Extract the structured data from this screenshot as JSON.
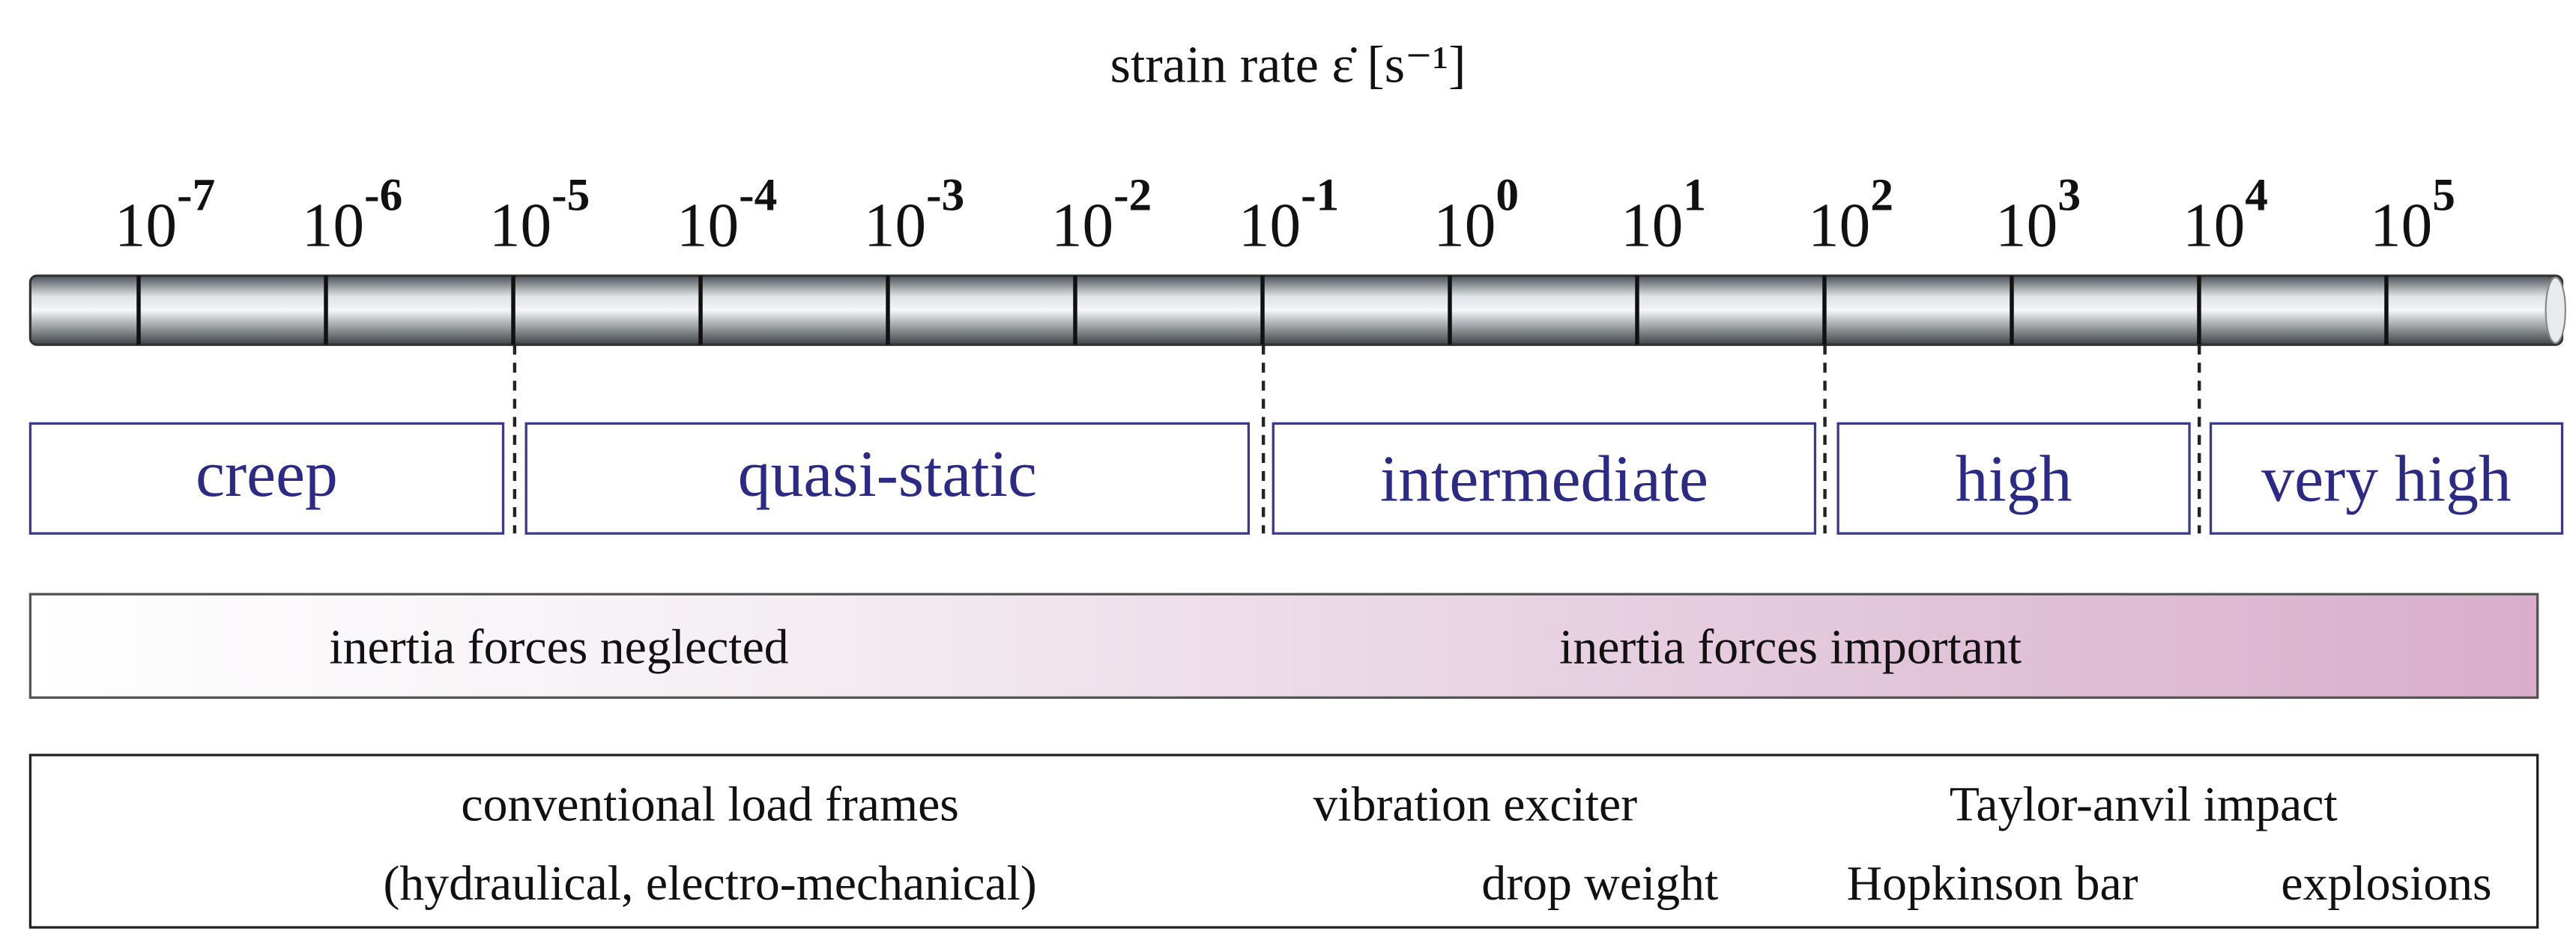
{
  "title": "strain rate ε̇ [s⁻¹]",
  "ticks": [
    {
      "base": "10",
      "exponent": "-7"
    },
    {
      "base": "10",
      "exponent": "-6"
    },
    {
      "base": "10",
      "exponent": "-5"
    },
    {
      "base": "10",
      "exponent": "-4"
    },
    {
      "base": "10",
      "exponent": "-3"
    },
    {
      "base": "10",
      "exponent": "-2"
    },
    {
      "base": "10",
      "exponent": "-1"
    },
    {
      "base": "10",
      "exponent": "0"
    },
    {
      "base": "10",
      "exponent": "1"
    },
    {
      "base": "10",
      "exponent": "2"
    },
    {
      "base": "10",
      "exponent": "3"
    },
    {
      "base": "10",
      "exponent": "4"
    },
    {
      "base": "10",
      "exponent": "5"
    }
  ],
  "regimes": [
    "creep",
    "quasi-static",
    "intermediate",
    "high",
    "very high"
  ],
  "inertia": [
    "inertia forces neglected",
    "inertia forces important"
  ],
  "methods": [
    "conventional load frames",
    "vibration exciter",
    "Taylor-anvil impact",
    "(hydraulical, electro-mechanical)",
    "drop weight",
    "Hopkinson bar",
    "explosions"
  ]
}
